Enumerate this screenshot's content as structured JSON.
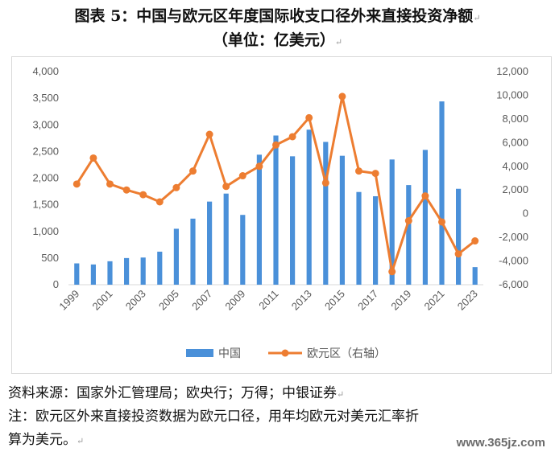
{
  "title_line1": "图表 5：中国与欧元区年度国际收支口径外来直接投资净额",
  "title_line2": "（单位：亿美元）",
  "para_mark": "↵",
  "source_text": "资料来源：国家外汇管理局；欧央行；万得；中银证券",
  "note_line1": "注：欧元区外来直接投资数据为欧元口径，用年均欧元对美元汇率折",
  "note_line2": "算为美元。",
  "watermark": "www.365jz.com",
  "chart_data": {
    "type": "bar+line",
    "categories": [
      "1999",
      "2000",
      "2001",
      "2002",
      "2003",
      "2004",
      "2005",
      "2006",
      "2007",
      "2008",
      "2009",
      "2010",
      "2011",
      "2012",
      "2013",
      "2014",
      "2015",
      "2016",
      "2017",
      "2018",
      "2019",
      "2020",
      "2021",
      "2022",
      "2023"
    ],
    "x_tick_labels": [
      "1999",
      "2001",
      "2003",
      "2005",
      "2007",
      "2009",
      "2011",
      "2013",
      "2015",
      "2017",
      "2019",
      "2021",
      "2023"
    ],
    "left_axis": {
      "ylim": [
        0,
        4000
      ],
      "ticks": [
        "0",
        "500",
        "1,000",
        "1,500",
        "2,000",
        "2,500",
        "3,000",
        "3,500",
        "4,000"
      ]
    },
    "right_axis": {
      "ylim": [
        -6000,
        12000
      ],
      "ticks": [
        "-6,000",
        "-4,000",
        "-2,000",
        "0",
        "2,000",
        "4,000",
        "6,000",
        "8,000",
        "10,000",
        "12,000"
      ]
    },
    "series": [
      {
        "name": "中国",
        "type": "bar",
        "axis": "left",
        "color": "#4a90d9",
        "values": [
          400,
          380,
          440,
          500,
          510,
          620,
          1050,
          1240,
          1560,
          1710,
          1310,
          2440,
          2800,
          2410,
          2910,
          2680,
          2420,
          1740,
          1660,
          2350,
          1870,
          2530,
          3440,
          1800,
          330
        ]
      },
      {
        "name": "欧元区（右轴）",
        "type": "line",
        "axis": "right",
        "color": "#ed7d31",
        "values": [
          2500,
          4700,
          2500,
          2000,
          1600,
          1000,
          2200,
          3600,
          6700,
          2300,
          3200,
          4000,
          5800,
          6500,
          8100,
          2600,
          9900,
          3600,
          3400,
          -4900,
          -600,
          1500,
          -700,
          -3400,
          -2300
        ]
      }
    ],
    "legend_position": "bottom",
    "grid": false
  }
}
